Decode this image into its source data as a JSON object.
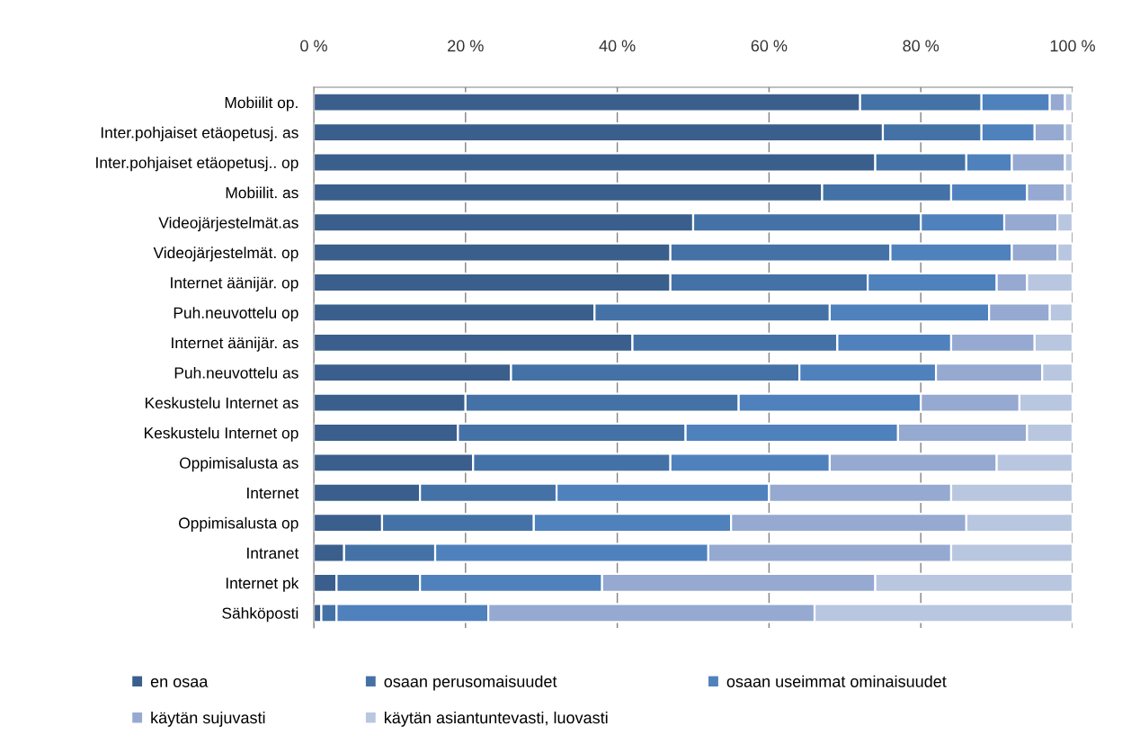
{
  "chart_data": {
    "type": "bar",
    "orientation": "horizontal",
    "stacked": true,
    "categories": [
      "Mobiilit op.",
      "Inter.pohjaiset etäopetusj. as",
      "Inter.pohjaiset etäopetusj.. op",
      "Mobiilit. as",
      "Videojärjestelmät.as",
      "Videojärjestelmät. op",
      "Internet äänijär. op",
      "Puh.neuvottelu op",
      "Internet äänijär. as",
      "Puh.neuvottelu as",
      "Keskustelu Internet as",
      "Keskustelu Internet op",
      "Oppimisalusta as",
      "Internet",
      "Oppimisalusta op",
      "Intranet",
      "Internet pk",
      "Sähköposti"
    ],
    "series": [
      {
        "name": "en osaa",
        "color": "#3a5f8c",
        "values": [
          72,
          75,
          74,
          67,
          50,
          47,
          47,
          37,
          42,
          26,
          20,
          19,
          21,
          14,
          9,
          4,
          3,
          1
        ]
      },
      {
        "name": "osaan perusomaisuudet",
        "color": "#4472a6",
        "values": [
          16,
          13,
          12,
          17,
          30,
          29,
          26,
          31,
          27,
          38,
          36,
          30,
          26,
          18,
          20,
          12,
          11,
          2
        ]
      },
      {
        "name": "osaan useimmat ominaisuudet",
        "color": "#4f81bd",
        "values": [
          9,
          7,
          6,
          10,
          11,
          16,
          17,
          21,
          15,
          18,
          24,
          28,
          21,
          28,
          26,
          36,
          24,
          20
        ]
      },
      {
        "name": "käytän sujuvasti",
        "color": "#95a9d1",
        "values": [
          2,
          4,
          7,
          5,
          7,
          6,
          4,
          8,
          11,
          14,
          13,
          17,
          22,
          24,
          31,
          32,
          36,
          43
        ]
      },
      {
        "name": "käytän asiantuntevasti, luovasti",
        "color": "#b9c6e0",
        "values": [
          1,
          1,
          1,
          1,
          2,
          2,
          6,
          3,
          5,
          4,
          7,
          6,
          10,
          16,
          14,
          16,
          26,
          34
        ]
      }
    ],
    "xlim": [
      0,
      100
    ],
    "xticks": [
      {
        "value": 0,
        "label": "0 %"
      },
      {
        "value": 20,
        "label": "20 %"
      },
      {
        "value": 40,
        "label": "40 %"
      },
      {
        "value": 60,
        "label": "60 %"
      },
      {
        "value": 80,
        "label": "80 %"
      },
      {
        "value": 100,
        "label": "100 %"
      }
    ],
    "grid": "x",
    "legend": "bottom"
  }
}
